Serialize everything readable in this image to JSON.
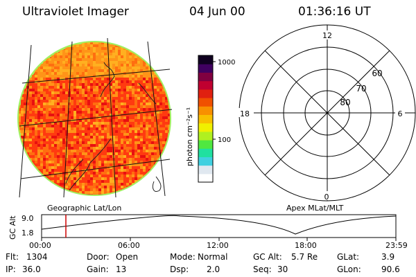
{
  "header": {
    "instrument": "Ultraviolet Imager",
    "date": "04 Jun 00",
    "time": "01:36:16 UT"
  },
  "colorbar": {
    "unit_label": "photon cm⁻²s⁻¹",
    "ticks": [
      {
        "label": "1000",
        "value": 1000
      },
      {
        "label": "100",
        "value": 100
      }
    ],
    "colors": [
      "#ffffff",
      "#e0e8f0",
      "#40d0e0",
      "#20e0a0",
      "#50e840",
      "#b0f020",
      "#f0f000",
      "#f8c000",
      "#f89000",
      "#f05000",
      "#e02010",
      "#c00030",
      "#800040",
      "#400060",
      "#100020"
    ]
  },
  "image_panel": {
    "caption": "Geographic Lat/Lon",
    "fill_colors": [
      "#ff3a10",
      "#ff6e10",
      "#ff9418",
      "#ffb020",
      "#e81010"
    ],
    "limb_color": "#a0f060"
  },
  "polar_plot": {
    "caption": "Apex MLat/MLT",
    "mlt_labels": {
      "top": "12",
      "left": "18",
      "right": "6",
      "bottom": "0"
    },
    "lat_labels": [
      "60",
      "70",
      "80"
    ]
  },
  "altitude_plot": {
    "ylabel": "GC Alt",
    "yticks": [
      "9.0",
      "1.8"
    ],
    "xticks": [
      "00:00",
      "06:00",
      "12:00",
      "18:00",
      "23:59"
    ],
    "marker_time": "01:36:16",
    "marker_color": "#cc0000"
  },
  "info": {
    "flt_label": "Flt:",
    "flt": "1304",
    "ip_label": "IP:",
    "ip": "36.0",
    "door_label": "Door:",
    "door": "Open",
    "gain_label": "Gain:",
    "gain": "13",
    "mode_label": "Mode:",
    "mode": "Normal",
    "dsp_label": "Dsp:",
    "dsp": "2.0",
    "gcalt_label": "GC Alt:",
    "gcalt": "5.7 Re",
    "seq_label": "Seq:",
    "seq": "30",
    "glat_label": "GLat:",
    "glat": "3.9",
    "glon_label": "GLon:",
    "glon": "90.6"
  }
}
